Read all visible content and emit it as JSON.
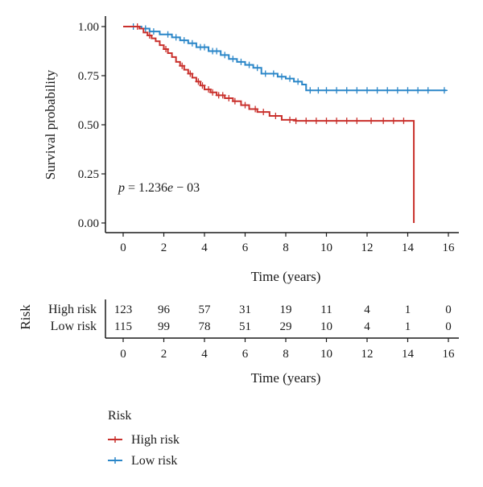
{
  "chart_data": [
    {
      "type": "line",
      "subtype": "kaplan-meier",
      "xlabel": "Time (years)",
      "ylabel": "Survival probability",
      "xlim": [
        0,
        16
      ],
      "ylim": [
        0,
        1
      ],
      "xticks": [
        "0",
        "2",
        "4",
        "6",
        "8",
        "10",
        "12",
        "14",
        "16"
      ],
      "yticks": [
        "0.00",
        "0.25",
        "0.50",
        "0.75",
        "1.00"
      ],
      "annotation": "p = 1.236e − 03",
      "grid": false,
      "series": [
        {
          "name": "High risk",
          "color": "#c9302c",
          "steps": [
            [
              0,
              1.0
            ],
            [
              0.8,
              0.99
            ],
            [
              1.0,
              0.97
            ],
            [
              1.2,
              0.955
            ],
            [
              1.4,
              0.94
            ],
            [
              1.6,
              0.925
            ],
            [
              1.8,
              0.905
            ],
            [
              2.0,
              0.885
            ],
            [
              2.2,
              0.865
            ],
            [
              2.4,
              0.845
            ],
            [
              2.6,
              0.82
            ],
            [
              2.8,
              0.8
            ],
            [
              3.0,
              0.78
            ],
            [
              3.2,
              0.76
            ],
            [
              3.4,
              0.74
            ],
            [
              3.6,
              0.72
            ],
            [
              3.8,
              0.7
            ],
            [
              4.0,
              0.68
            ],
            [
              4.3,
              0.665
            ],
            [
              4.6,
              0.65
            ],
            [
              5.0,
              0.635
            ],
            [
              5.4,
              0.62
            ],
            [
              5.8,
              0.6
            ],
            [
              6.2,
              0.58
            ],
            [
              6.6,
              0.565
            ],
            [
              7.2,
              0.545
            ],
            [
              7.8,
              0.525
            ],
            [
              8.5,
              0.52
            ],
            [
              14.3,
              0.52
            ],
            [
              14.3,
              0.0
            ]
          ],
          "censor_times": [
            0.7,
            1.3,
            2.1,
            2.9,
            3.3,
            3.7,
            3.9,
            4.2,
            4.4,
            4.7,
            4.9,
            5.2,
            5.5,
            6.0,
            6.5,
            6.9,
            7.5,
            8.2,
            8.5,
            9.0,
            9.5,
            10.0,
            10.5,
            11.0,
            11.5,
            12.2,
            12.8,
            13.3,
            13.8
          ]
        },
        {
          "name": "Low risk",
          "color": "#2a86c8",
          "steps": [
            [
              0,
              1.0
            ],
            [
              0.9,
              0.99
            ],
            [
              1.3,
              0.975
            ],
            [
              1.8,
              0.96
            ],
            [
              2.4,
              0.945
            ],
            [
              2.8,
              0.93
            ],
            [
              3.2,
              0.915
            ],
            [
              3.6,
              0.895
            ],
            [
              4.2,
              0.875
            ],
            [
              4.8,
              0.855
            ],
            [
              5.2,
              0.835
            ],
            [
              5.6,
              0.82
            ],
            [
              6.0,
              0.805
            ],
            [
              6.4,
              0.79
            ],
            [
              6.8,
              0.76
            ],
            [
              7.6,
              0.745
            ],
            [
              8.0,
              0.735
            ],
            [
              8.4,
              0.72
            ],
            [
              8.8,
              0.705
            ],
            [
              9.0,
              0.675
            ],
            [
              15.9,
              0.675
            ]
          ],
          "censor_times": [
            0.5,
            1.1,
            1.5,
            2.2,
            2.6,
            3.0,
            3.4,
            3.8,
            4.0,
            4.4,
            4.6,
            5.0,
            5.4,
            5.8,
            6.2,
            6.6,
            7.0,
            7.4,
            7.8,
            8.2,
            8.6,
            9.2,
            9.6,
            10.0,
            10.5,
            11.0,
            11.5,
            12.0,
            12.5,
            13.0,
            13.5,
            14.0,
            14.5,
            15.0,
            15.8
          ]
        }
      ]
    },
    {
      "type": "table",
      "title": "Risk",
      "xlabel": "Time (years)",
      "times": [
        "0",
        "2",
        "4",
        "6",
        "8",
        "10",
        "12",
        "14",
        "16"
      ],
      "rows": [
        {
          "name": "High risk",
          "color": "#c9302c",
          "values": [
            123,
            96,
            57,
            31,
            19,
            11,
            4,
            1,
            0
          ]
        },
        {
          "name": "Low risk",
          "color": "#6b96c9",
          "values": [
            115,
            99,
            78,
            51,
            29,
            10,
            4,
            1,
            0
          ]
        }
      ]
    }
  ],
  "legend": {
    "title": "Risk",
    "items": [
      {
        "label": "High risk",
        "color": "#c9302c"
      },
      {
        "label": "Low risk",
        "color": "#2a86c8"
      }
    ]
  }
}
